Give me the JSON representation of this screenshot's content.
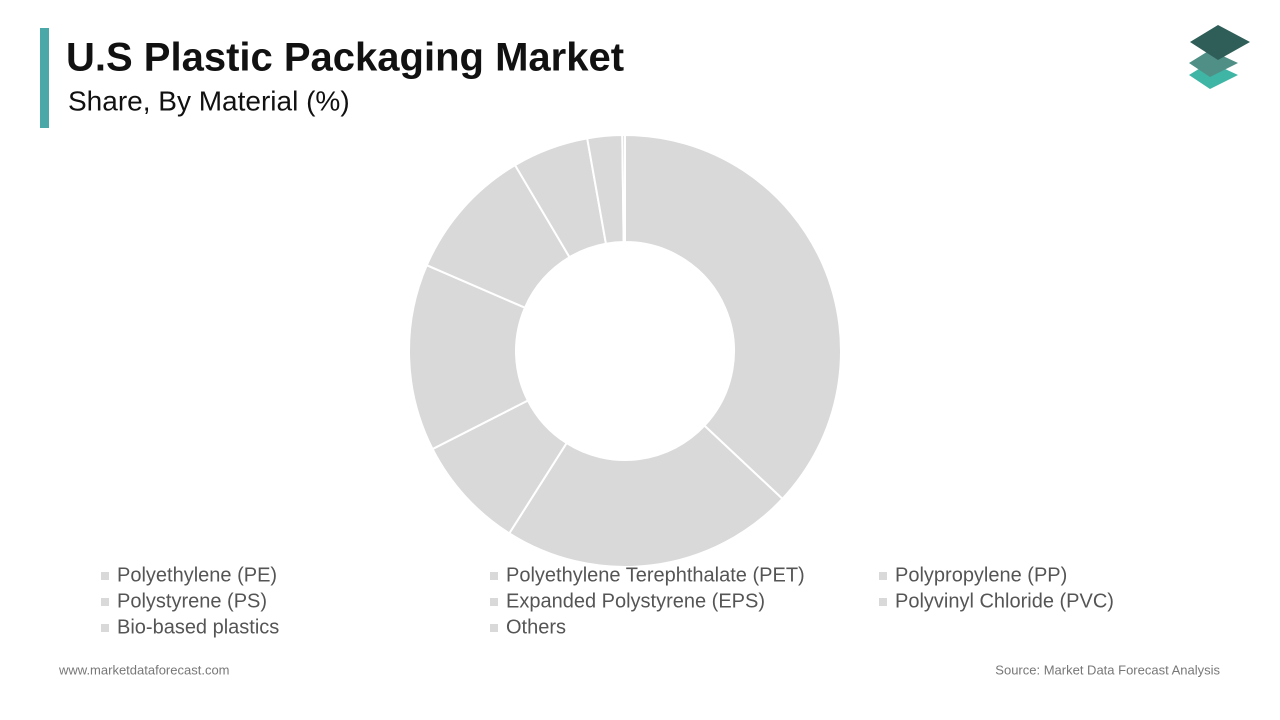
{
  "chart_data": {
    "type": "donut",
    "title": "U.S Plastic Packaging Market",
    "subtitle": "Share, By Material (%)",
    "categories": [
      "Polyethylene (PE)",
      "Polyethylene Terephthalate (PET)",
      "Polypropylene (PP)",
      "Polystyrene (PS)",
      "Expanded Polystyrene (EPS)",
      "Polyvinyl Chloride (PVC)",
      "Bio-based plastics",
      "Others"
    ],
    "values": [
      37,
      22,
      8.5,
      14,
      10,
      5.7,
      2.6,
      0.2
    ],
    "color": "#d9d9d9"
  },
  "footer": {
    "website": "www.marketdataforecast.com",
    "source": "Source: Market Data Forecast Analysis"
  }
}
